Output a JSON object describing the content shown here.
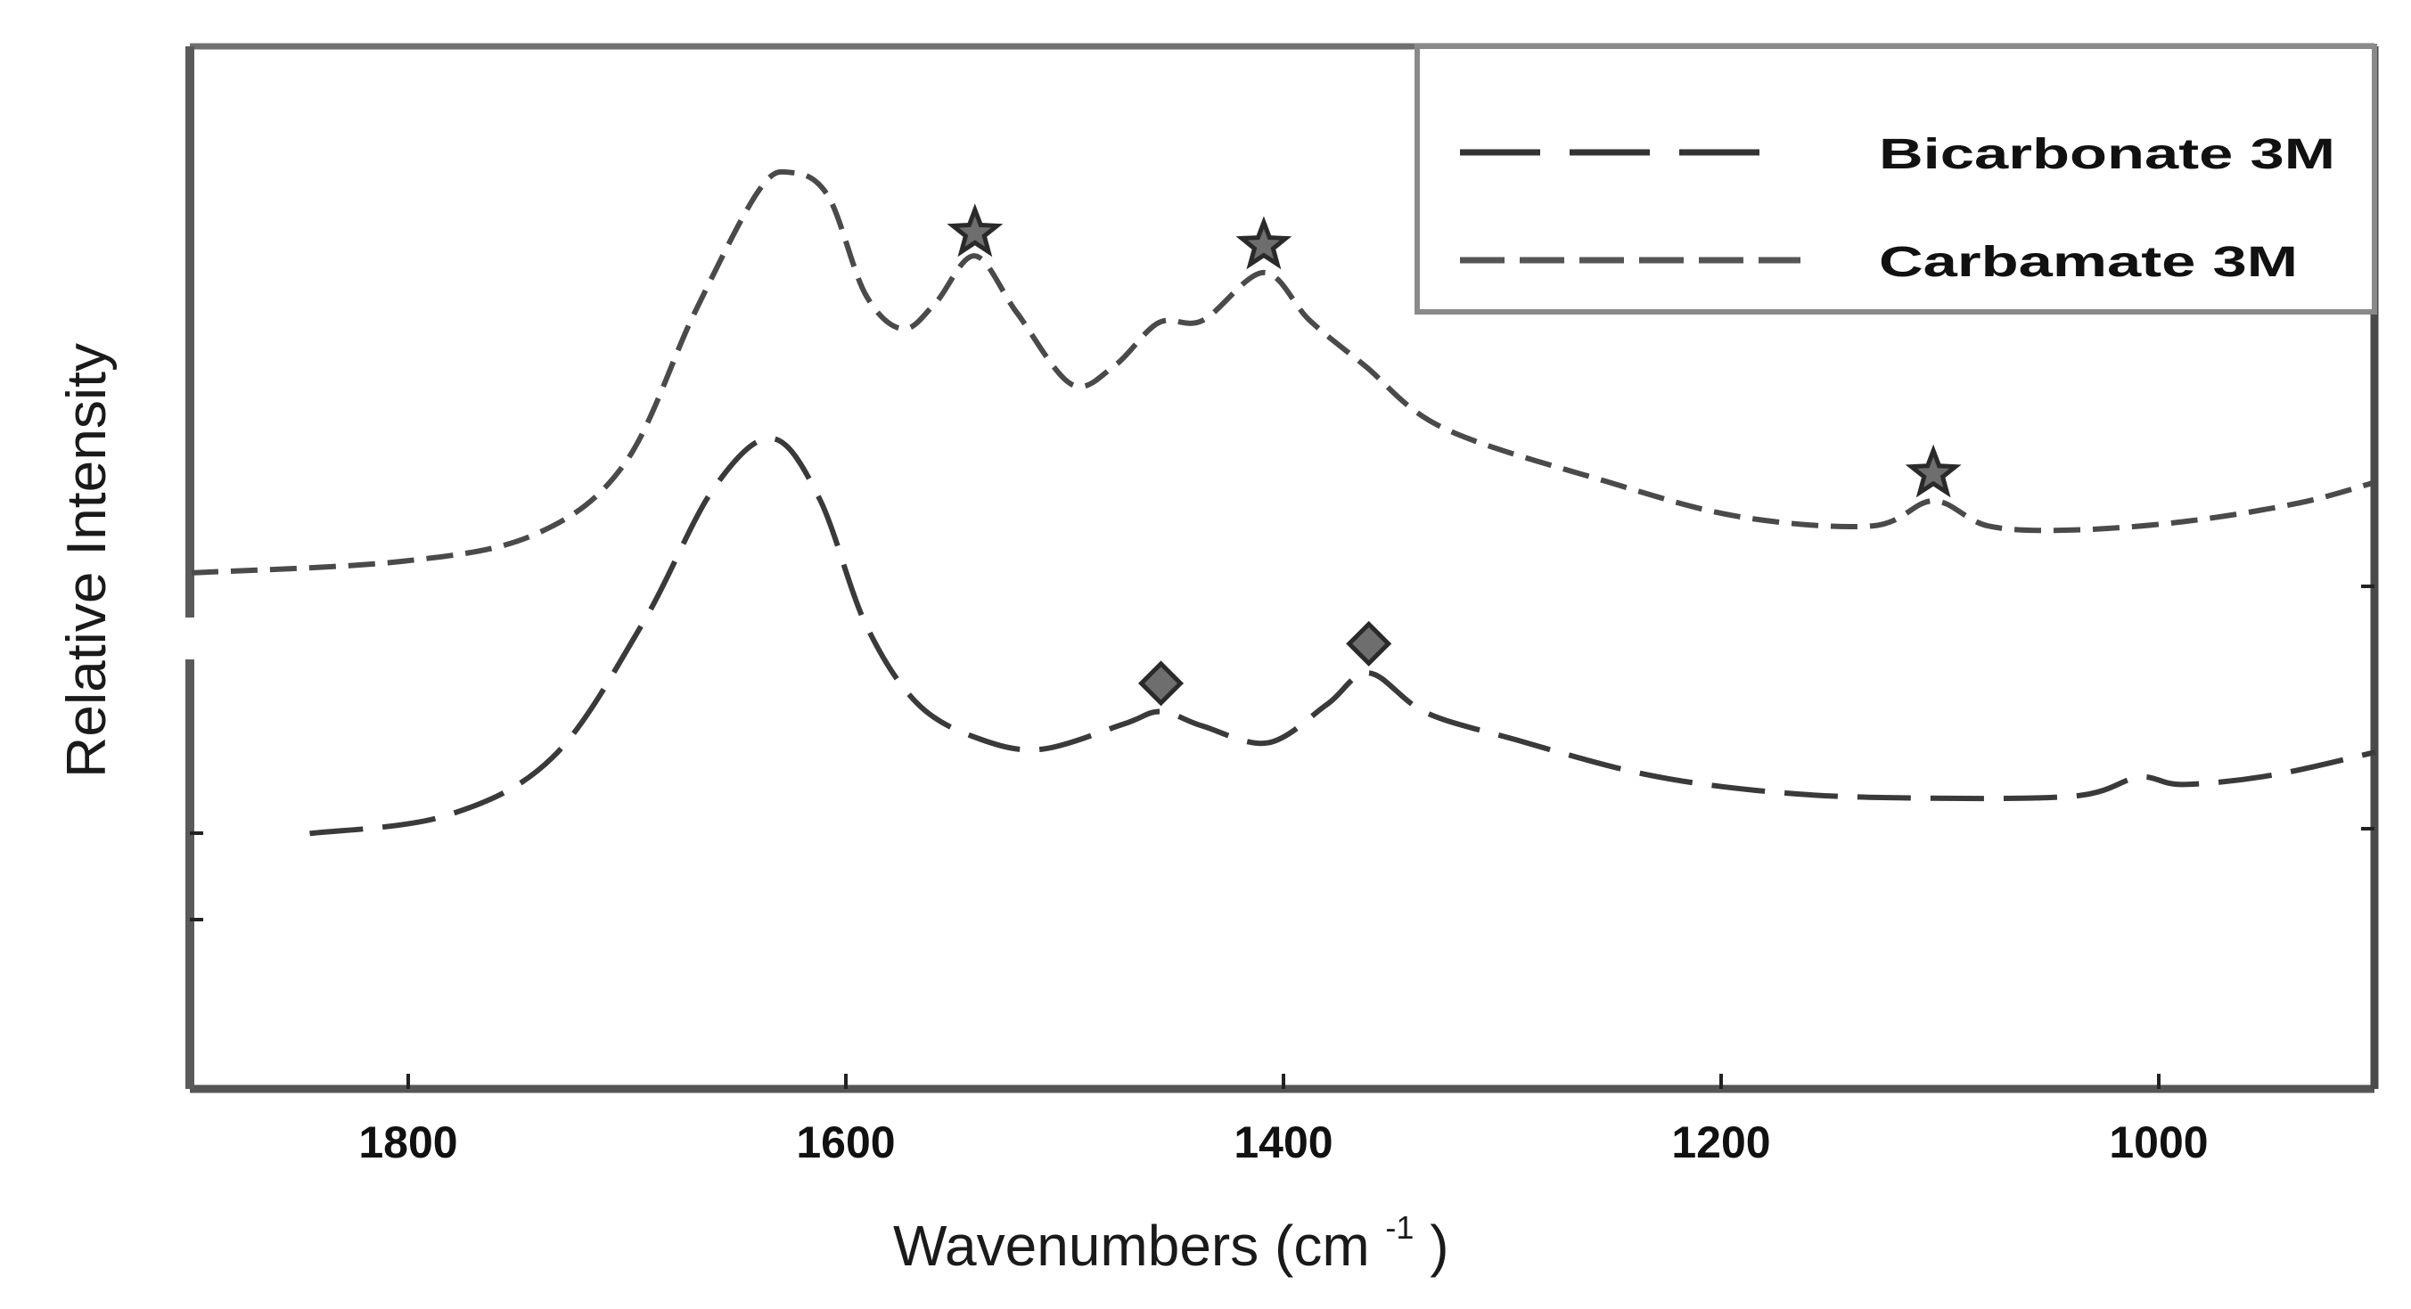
{
  "chart_data": {
    "type": "line",
    "title": "",
    "xlabel": "Wavenumbers (cm⁻¹)",
    "xlabel_main": "Wavenumbers (cm",
    "xlabel_sup": "-1",
    "xlabel_close": ")",
    "ylabel": "Relative Intensity",
    "xlim": [
      1900,
      900
    ],
    "x_reversed": true,
    "ylim": [
      0,
      100
    ],
    "y_units": "arbitrary (relative intensity, no tick labels)",
    "x_ticks": [
      1800,
      1600,
      1400,
      1200,
      1000
    ],
    "x_tick_labels": [
      "1800",
      "1600",
      "1400",
      "1200",
      "1000"
    ],
    "grid": false,
    "legend_position": "upper right",
    "series": [
      {
        "name": "Bicarbonate 3M",
        "line_style": "long-dash",
        "color": "#3a3a3a",
        "x": [
          1845,
          1783,
          1734,
          1693,
          1661,
          1634,
          1612,
          1591,
          1567,
          1538,
          1510,
          1473,
          1456,
          1437,
          1407,
          1380,
          1361,
          1335,
          1294,
          1233,
          1172,
          1111,
          1038,
          1009,
          989,
          948,
          901
        ],
        "y": [
          24.5,
          26.2,
          31.8,
          44.6,
          57.4,
          62.4,
          56.6,
          44.6,
          36.9,
          33.5,
          32.6,
          35.0,
          36.2,
          34.8,
          33.2,
          36.9,
          39.9,
          36.1,
          33.5,
          30.1,
          28.4,
          27.9,
          28.1,
          29.9,
          29.2,
          30.1,
          32.3
        ]
      },
      {
        "name": "Carbamate 3M",
        "line_style": "short-dash",
        "color": "#4a4a4a",
        "x": [
          1899,
          1803,
          1742,
          1701,
          1669,
          1640,
          1625,
          1608,
          1591,
          1574,
          1559,
          1541,
          1522,
          1497,
          1477,
          1457,
          1437,
          1409,
          1388,
          1363,
          1327,
          1253,
          1192,
          1131,
          1103,
          1078,
          1041,
          989,
          936,
          901
        ],
        "y": [
          49.5,
          50.6,
          53.2,
          60.0,
          74.5,
          86.1,
          87.9,
          85.6,
          76.2,
          72.9,
          75.4,
          79.9,
          74.5,
          67.6,
          69.4,
          73.5,
          73.7,
          78.3,
          73.7,
          69.4,
          63.4,
          58.3,
          54.9,
          54.0,
          56.4,
          54.0,
          53.6,
          54.4,
          56.2,
          58.2
        ]
      }
    ],
    "annotations": [
      {
        "marker": "star",
        "series": "Carbamate 3M",
        "x": 1541,
        "y": 82.1
      },
      {
        "marker": "star",
        "series": "Carbamate 3M",
        "x": 1409,
        "y": 80.9
      },
      {
        "marker": "star",
        "series": "Carbamate 3M",
        "x": 1103,
        "y": 59.0
      },
      {
        "marker": "diamond",
        "series": "Bicarbonate 3M",
        "x": 1456,
        "y": 38.9
      },
      {
        "marker": "diamond",
        "series": "Bicarbonate 3M",
        "x": 1361,
        "y": 42.7
      }
    ]
  },
  "legend": {
    "items": [
      {
        "label": "Bicarbonate 3M",
        "style": "long-dash"
      },
      {
        "label": "Carbamate 3M",
        "style": "short-dash"
      }
    ]
  }
}
